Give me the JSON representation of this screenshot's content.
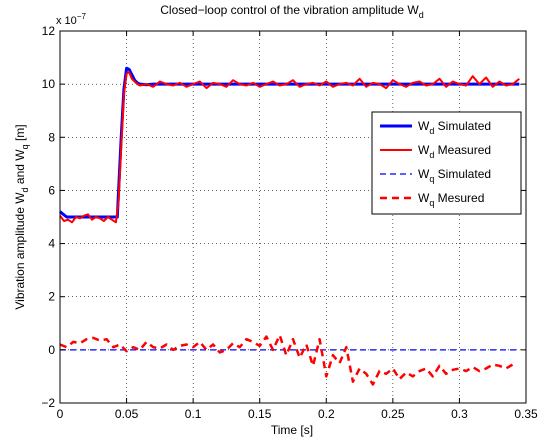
{
  "chart_data": {
    "type": "line",
    "title": "Closed−loop control of the vibration amplitude W",
    "title_sub": "d",
    "xlabel": "Time [s]",
    "ylabel_parts": [
      "Vibration amplitude W",
      "d",
      " and W",
      "q",
      " [m]"
    ],
    "y_exponent_label": "x 10",
    "y_exponent": "−7",
    "xlim": [
      0,
      0.35
    ],
    "ylim": [
      -2,
      12
    ],
    "x_ticks": [
      0,
      0.05,
      0.1,
      0.15,
      0.2,
      0.25,
      0.3,
      0.35
    ],
    "x_tick_labels": [
      "0",
      "0.05",
      "0.1",
      "0.15",
      "0.2",
      "0.25",
      "0.3",
      "0.35"
    ],
    "y_ticks": [
      -2,
      0,
      2,
      4,
      6,
      8,
      10,
      12
    ],
    "y_tick_labels": [
      "−2",
      "0",
      "2",
      "4",
      "6",
      "8",
      "10",
      "12"
    ],
    "grid": true,
    "legend_position": "right",
    "series": [
      {
        "name": "Simulated",
        "legend_main": "W",
        "legend_sub": "d",
        "legend_rest": " Simulated",
        "color": "#0000ff",
        "style": "solid",
        "width": 3,
        "x": [
          0,
          0.005,
          0.01,
          0.02,
          0.03,
          0.043,
          0.044,
          0.046,
          0.048,
          0.05,
          0.052,
          0.054,
          0.056,
          0.058,
          0.06,
          0.065,
          0.07,
          0.08,
          0.1,
          0.2,
          0.3,
          0.345
        ],
        "y": [
          5.2,
          5.0,
          5.0,
          5.0,
          5.0,
          5.0,
          6.0,
          8.0,
          9.8,
          10.6,
          10.55,
          10.35,
          10.15,
          10.05,
          10.0,
          9.98,
          10.0,
          10.0,
          10.0,
          10.0,
          10.0,
          10.0
        ]
      },
      {
        "name": "Measured",
        "legend_main": "W",
        "legend_sub": "d",
        "legend_rest": " Measured",
        "color": "#ff0000",
        "style": "solid",
        "width": 2,
        "x": [
          0,
          0.003,
          0.006,
          0.009,
          0.012,
          0.015,
          0.018,
          0.021,
          0.024,
          0.027,
          0.03,
          0.033,
          0.036,
          0.039,
          0.042,
          0.044,
          0.046,
          0.048,
          0.05,
          0.052,
          0.054,
          0.056,
          0.058,
          0.06,
          0.065,
          0.07,
          0.075,
          0.08,
          0.085,
          0.09,
          0.095,
          0.1,
          0.105,
          0.11,
          0.115,
          0.12,
          0.125,
          0.13,
          0.135,
          0.14,
          0.145,
          0.15,
          0.155,
          0.16,
          0.165,
          0.17,
          0.175,
          0.18,
          0.185,
          0.19,
          0.195,
          0.2,
          0.205,
          0.21,
          0.215,
          0.22,
          0.225,
          0.23,
          0.235,
          0.24,
          0.245,
          0.25,
          0.255,
          0.26,
          0.265,
          0.27,
          0.275,
          0.28,
          0.285,
          0.29,
          0.295,
          0.3,
          0.305,
          0.31,
          0.315,
          0.32,
          0.325,
          0.33,
          0.335,
          0.34,
          0.345
        ],
        "y": [
          5.05,
          4.85,
          4.9,
          4.8,
          5.0,
          4.95,
          5.05,
          5.1,
          4.9,
          5.0,
          4.95,
          4.85,
          5.0,
          4.9,
          4.8,
          5.6,
          7.6,
          9.6,
          10.4,
          10.45,
          10.2,
          10.1,
          10.0,
          9.95,
          10.0,
          9.9,
          10.1,
          10.0,
          9.95,
          10.05,
          9.9,
          10.0,
          10.1,
          9.85,
          10.05,
          10.0,
          9.9,
          10.15,
          10.0,
          9.95,
          10.05,
          9.9,
          10.0,
          10.1,
          9.95,
          10.0,
          10.15,
          9.9,
          10.0,
          10.05,
          9.95,
          10.1,
          9.9,
          10.0,
          10.05,
          9.95,
          10.2,
          9.9,
          10.05,
          10.0,
          9.85,
          10.15,
          10.0,
          9.9,
          10.05,
          10.1,
          9.95,
          10.0,
          10.2,
          9.9,
          10.1,
          10.0,
          9.95,
          10.3,
          10.0,
          10.25,
          9.9,
          10.1,
          9.95,
          10.0,
          10.2
        ]
      },
      {
        "name": "Simulated",
        "legend_main": "W",
        "legend_sub": "q",
        "legend_rest": " Simulated",
        "color": "#0000ff",
        "style": "dashed",
        "width": 1.2,
        "x": [
          0,
          0.345
        ],
        "y": [
          0,
          0
        ]
      },
      {
        "name": "Mesured",
        "legend_main": "W",
        "legend_sub": "q",
        "legend_rest": " Mesured",
        "color": "#ff0000",
        "style": "dashed",
        "width": 2.5,
        "x": [
          0,
          0.005,
          0.01,
          0.015,
          0.02,
          0.025,
          0.03,
          0.035,
          0.04,
          0.045,
          0.05,
          0.055,
          0.06,
          0.065,
          0.07,
          0.075,
          0.08,
          0.085,
          0.09,
          0.095,
          0.1,
          0.105,
          0.11,
          0.115,
          0.12,
          0.125,
          0.13,
          0.135,
          0.14,
          0.145,
          0.15,
          0.155,
          0.16,
          0.165,
          0.17,
          0.175,
          0.18,
          0.185,
          0.19,
          0.195,
          0.2,
          0.205,
          0.21,
          0.215,
          0.22,
          0.225,
          0.23,
          0.235,
          0.24,
          0.245,
          0.25,
          0.255,
          0.26,
          0.265,
          0.27,
          0.275,
          0.28,
          0.285,
          0.29,
          0.295,
          0.3,
          0.305,
          0.31,
          0.315,
          0.32,
          0.325,
          0.33,
          0.335,
          0.34
        ],
        "y": [
          0.2,
          0.1,
          0.3,
          0.25,
          0.4,
          0.45,
          0.35,
          0.4,
          0.1,
          0.2,
          -0.05,
          0.1,
          0.0,
          0.3,
          0.1,
          0.05,
          0.2,
          0.0,
          0.15,
          0.2,
          0.1,
          0.3,
          0.0,
          0.2,
          -0.1,
          0.0,
          0.25,
          0.1,
          0.4,
          0.3,
          0.15,
          0.5,
          0.0,
          0.55,
          -0.2,
          0.4,
          -0.3,
          0.2,
          -0.6,
          0.4,
          -1.0,
          -0.2,
          -0.5,
          0.1,
          -1.2,
          -0.7,
          -0.9,
          -1.3,
          -0.8,
          -0.9,
          -0.7,
          -1.1,
          -0.85,
          -1.0,
          -0.8,
          -0.7,
          -1.0,
          -0.6,
          -0.9,
          -0.75,
          -0.7,
          -0.8,
          -0.65,
          -0.8,
          -0.7,
          -0.55,
          -0.6,
          -0.7,
          -0.55
        ]
      }
    ]
  }
}
